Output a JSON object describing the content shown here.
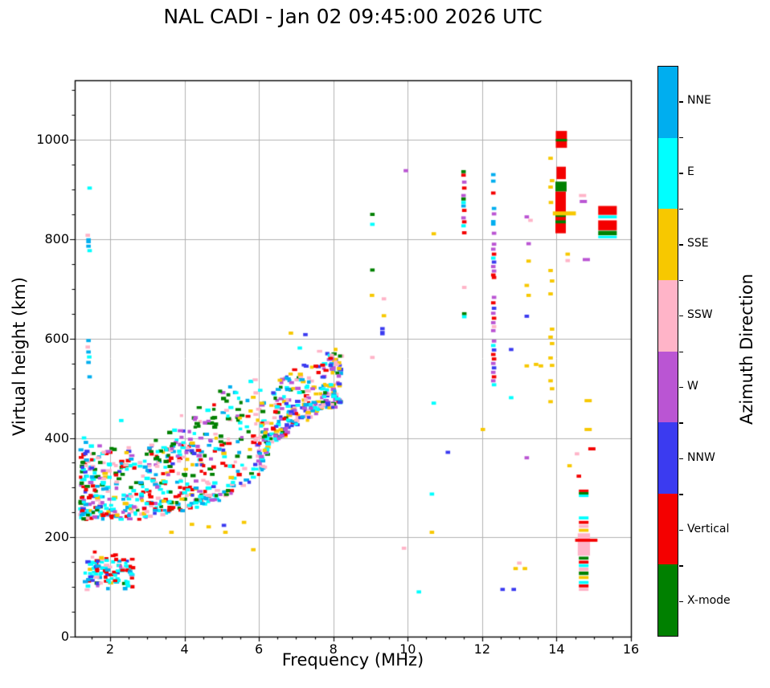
{
  "chart_data": {
    "type": "scatter",
    "title": "NAL CADI - Jan 02 09:45:00 2026 UTC",
    "xlabel": "Frequency (MHz)",
    "ylabel": "Virtual height (km)",
    "legend_title": "Azimuth Direction",
    "xlim": [
      1.05,
      16
    ],
    "ylim": [
      0,
      1120
    ],
    "xticks": [
      2,
      4,
      6,
      8,
      10,
      12,
      14,
      16
    ],
    "yticks": [
      0,
      200,
      400,
      600,
      800,
      1000
    ],
    "x_minor_step": 0.5,
    "y_minor_step": 50,
    "grid": true,
    "grid_color": "#b2b2b2",
    "frame_color": "#000000",
    "directions": [
      {
        "label": "NNE",
        "color": "#00aeef"
      },
      {
        "label": "E",
        "color": "#00ffff"
      },
      {
        "label": "SSE",
        "color": "#f7c800"
      },
      {
        "label": "SSW",
        "color": "#ffb4c8"
      },
      {
        "label": "W",
        "color": "#ba55d3"
      },
      {
        "label": "NNW",
        "color": "#3b3bf0"
      },
      {
        "label": "Vertical",
        "color": "#f40000"
      },
      {
        "label": "X-mode",
        "color": "#008000"
      }
    ],
    "points": [
      [
        1.45,
        903,
        1
      ],
      [
        1.4,
        808,
        3
      ],
      [
        1.42,
        797,
        0,
        1,
        1.6
      ],
      [
        1.42,
        786,
        0
      ],
      [
        1.45,
        777,
        1
      ],
      [
        1.42,
        596,
        0
      ],
      [
        1.4,
        583,
        3
      ],
      [
        1.42,
        573,
        0
      ],
      [
        1.44,
        563,
        1
      ],
      [
        1.42,
        552,
        0
      ],
      [
        1.45,
        523,
        0
      ],
      [
        1.3,
        400,
        1
      ],
      [
        1.35,
        391,
        0
      ],
      [
        2.3,
        435,
        1
      ],
      [
        1.72,
        384,
        4
      ],
      [
        1.83,
        371,
        3
      ],
      [
        3.65,
        210,
        2
      ],
      [
        4.2,
        226,
        2
      ],
      [
        4.65,
        221,
        2
      ],
      [
        5.1,
        210,
        2
      ],
      [
        5.6,
        230,
        2
      ],
      [
        5.85,
        175,
        2
      ],
      [
        5.06,
        224,
        5
      ],
      [
        6.86,
        611,
        2
      ],
      [
        7.1,
        581,
        1
      ],
      [
        7.25,
        608,
        5
      ],
      [
        7.94,
        507,
        1
      ],
      [
        9.05,
        850,
        7
      ],
      [
        9.05,
        830,
        1
      ],
      [
        9.05,
        738,
        7
      ],
      [
        9.04,
        687,
        2
      ],
      [
        9.36,
        680,
        3
      ],
      [
        9.36,
        646,
        2
      ],
      [
        9.32,
        620,
        5
      ],
      [
        9.32,
        611,
        5,
        1,
        1.4
      ],
      [
        9.05,
        562,
        3
      ],
      [
        9.95,
        938,
        4
      ],
      [
        9.9,
        178,
        3
      ],
      [
        10.3,
        90,
        1
      ],
      [
        10.7,
        811,
        2
      ],
      [
        10.7,
        470,
        1
      ],
      [
        10.65,
        287,
        1
      ],
      [
        10.65,
        210,
        2
      ],
      [
        11.08,
        371,
        5
      ],
      [
        11.5,
        936,
        7
      ],
      [
        11.5,
        929,
        6
      ],
      [
        11.52,
        915,
        4
      ],
      [
        11.52,
        903,
        6
      ],
      [
        11.5,
        888,
        4
      ],
      [
        11.5,
        881,
        7
      ],
      [
        11.5,
        874,
        1
      ],
      [
        11.5,
        867,
        0
      ],
      [
        11.52,
        858,
        6
      ],
      [
        11.5,
        843,
        4
      ],
      [
        11.52,
        835,
        6
      ],
      [
        11.5,
        827,
        1
      ],
      [
        11.52,
        813,
        6
      ],
      [
        11.52,
        703,
        3
      ],
      [
        11.52,
        650,
        7
      ],
      [
        11.52,
        644,
        1
      ],
      [
        12.3,
        930,
        0
      ],
      [
        12.3,
        917,
        0
      ],
      [
        12.3,
        893,
        6
      ],
      [
        12.32,
        862,
        0
      ],
      [
        12.32,
        851,
        4
      ],
      [
        12.3,
        833,
        0,
        1,
        1.8
      ],
      [
        12.32,
        812,
        4
      ],
      [
        12.32,
        790,
        4
      ],
      [
        12.3,
        780,
        4
      ],
      [
        12.32,
        770,
        6
      ],
      [
        12.3,
        762,
        1
      ],
      [
        12.32,
        754,
        5
      ],
      [
        12.3,
        745,
        4
      ],
      [
        12.32,
        736,
        4
      ],
      [
        12.3,
        728,
        6
      ],
      [
        12.32,
        723,
        6
      ],
      [
        12.32,
        683,
        4
      ],
      [
        12.3,
        672,
        6
      ],
      [
        12.32,
        661,
        5
      ],
      [
        12.3,
        651,
        4
      ],
      [
        12.32,
        641,
        6
      ],
      [
        12.3,
        632,
        4
      ],
      [
        12.32,
        624,
        3
      ],
      [
        12.3,
        616,
        4
      ],
      [
        12.32,
        595,
        4
      ],
      [
        12.3,
        586,
        1
      ],
      [
        12.32,
        577,
        5
      ],
      [
        12.3,
        568,
        6
      ],
      [
        12.32,
        559,
        6
      ],
      [
        12.3,
        550,
        4
      ],
      [
        12.32,
        541,
        5
      ],
      [
        12.3,
        532,
        4
      ],
      [
        12.32,
        523,
        6
      ],
      [
        12.3,
        515,
        4
      ],
      [
        12.32,
        507,
        1
      ],
      [
        12.02,
        417,
        2
      ],
      [
        12.55,
        95,
        5
      ],
      [
        12.85,
        95,
        5
      ],
      [
        12.9,
        137,
        2
      ],
      [
        13.15,
        137,
        2
      ],
      [
        13.0,
        148,
        3
      ],
      [
        13.2,
        845,
        4
      ],
      [
        13.3,
        838,
        3
      ],
      [
        13.25,
        791,
        4
      ],
      [
        13.25,
        756,
        2
      ],
      [
        13.2,
        707,
        2
      ],
      [
        13.25,
        687,
        2
      ],
      [
        13.2,
        645,
        5
      ],
      [
        12.78,
        578,
        5
      ],
      [
        13.2,
        545,
        2
      ],
      [
        13.45,
        548,
        2
      ],
      [
        13.58,
        545,
        2
      ],
      [
        12.78,
        481,
        1
      ],
      [
        13.2,
        360,
        4
      ],
      [
        13.84,
        963,
        2
      ],
      [
        13.88,
        918,
        2
      ],
      [
        13.84,
        905,
        2
      ],
      [
        13.85,
        874,
        2
      ],
      [
        13.84,
        737,
        2
      ],
      [
        13.88,
        716,
        2
      ],
      [
        13.84,
        690,
        2
      ],
      [
        13.88,
        619,
        2
      ],
      [
        13.84,
        603,
        2
      ],
      [
        13.88,
        590,
        2
      ],
      [
        13.84,
        561,
        2
      ],
      [
        13.88,
        546,
        2
      ],
      [
        13.84,
        515,
        2
      ],
      [
        13.88,
        499,
        2
      ],
      [
        13.84,
        473,
        2
      ],
      [
        14.3,
        770,
        2
      ],
      [
        14.3,
        757,
        3
      ],
      [
        14.8,
        759,
        4,
        1.6,
        1
      ],
      [
        14.7,
        888,
        3,
        1.6,
        1
      ],
      [
        14.72,
        876,
        4,
        1.6,
        1
      ],
      [
        14.85,
        475,
        2,
        1.6,
        1
      ],
      [
        14.85,
        417,
        2,
        1.6,
        1
      ],
      [
        14.95,
        378,
        6,
        1.6,
        1
      ],
      [
        14.55,
        368,
        3
      ],
      [
        14.35,
        344,
        2
      ],
      [
        14.6,
        323,
        6
      ]
    ],
    "blocks": [
      [
        13.98,
        984,
        14.28,
        1018,
        6
      ],
      [
        13.98,
        997,
        14.28,
        1002,
        7
      ],
      [
        14.0,
        921,
        14.25,
        946,
        6
      ],
      [
        13.97,
        896,
        14.27,
        916,
        7
      ],
      [
        13.97,
        812,
        14.25,
        896,
        6
      ],
      [
        13.97,
        845,
        14.25,
        851,
        7
      ],
      [
        13.97,
        832,
        14.25,
        838,
        7
      ],
      [
        13.9,
        848,
        14.52,
        856,
        2
      ],
      [
        15.12,
        849,
        15.62,
        867,
        6
      ],
      [
        15.12,
        842,
        15.62,
        848,
        1
      ],
      [
        15.12,
        818,
        15.62,
        838,
        6
      ],
      [
        15.12,
        808,
        15.62,
        817,
        7
      ],
      [
        15.12,
        802,
        15.62,
        807,
        1
      ],
      [
        14.6,
        291,
        14.86,
        296,
        6
      ],
      [
        14.6,
        286,
        14.86,
        291,
        7
      ],
      [
        14.6,
        281,
        14.86,
        286,
        1
      ],
      [
        14.6,
        236,
        14.86,
        242,
        1
      ],
      [
        14.6,
        227,
        14.86,
        233,
        6
      ],
      [
        14.6,
        219,
        14.86,
        225,
        3
      ],
      [
        14.6,
        211,
        14.86,
        217,
        2
      ],
      [
        14.57,
        163,
        14.9,
        208,
        3
      ],
      [
        14.5,
        191,
        15.1,
        197,
        6
      ],
      [
        14.6,
        155,
        14.86,
        161,
        7
      ],
      [
        14.6,
        147,
        14.86,
        153,
        6
      ],
      [
        14.6,
        140,
        14.86,
        146,
        1
      ],
      [
        14.6,
        132,
        14.86,
        139,
        3
      ],
      [
        14.6,
        124,
        14.86,
        131,
        7
      ],
      [
        14.6,
        116,
        14.86,
        122,
        2
      ],
      [
        14.6,
        106,
        14.86,
        112,
        1
      ],
      [
        14.6,
        99,
        14.86,
        105,
        6
      ],
      [
        14.6,
        92,
        14.86,
        98,
        3
      ]
    ],
    "clusters": [
      {
        "name": "e-region-echoes",
        "seed": 101,
        "count": 110,
        "f": [
          1.3,
          2.65
        ],
        "f_pow": 1.0,
        "base": [
          [
            1.3,
            130
          ],
          [
            2.65,
            130
          ]
        ],
        "spread": 55,
        "mode": "gauss",
        "weights": [
          0.12,
          0.28,
          0.05,
          0.12,
          0.03,
          0.08,
          0.3,
          0.02
        ]
      },
      {
        "name": "f-trace-lower",
        "seed": 202,
        "count": 520,
        "f": [
          1.2,
          6.25
        ],
        "f_pow": 1.35,
        "base": [
          [
            1.2,
            242
          ],
          [
            2.5,
            240
          ],
          [
            3.5,
            250
          ],
          [
            4.5,
            266
          ],
          [
            5.2,
            287
          ],
          [
            5.8,
            316
          ],
          [
            6.25,
            347
          ]
        ],
        "spread": 138,
        "mode": "edge",
        "weights": [
          0.13,
          0.2,
          0.05,
          0.13,
          0.08,
          0.05,
          0.22,
          0.14
        ]
      },
      {
        "name": "f-trace-upper-scatter",
        "seed": 303,
        "count": 85,
        "f": [
          3.1,
          6.05
        ],
        "f_pow": 1.0,
        "base": [
          [
            3.1,
            360
          ],
          [
            4.0,
            402
          ],
          [
            5.0,
            446
          ],
          [
            6.05,
            482
          ]
        ],
        "spread": 62,
        "mode": "gauss",
        "weights": [
          0.14,
          0.21,
          0.02,
          0.08,
          0.16,
          0.06,
          0.01,
          0.32
        ]
      },
      {
        "name": "f2-trace",
        "seed": 404,
        "count": 310,
        "f": [
          5.95,
          8.22
        ],
        "f_pow": 1.0,
        "base": [
          [
            5.95,
            345
          ],
          [
            6.4,
            392
          ],
          [
            7.0,
            426
          ],
          [
            7.6,
            456
          ],
          [
            8.22,
            470
          ]
        ],
        "spread": 112,
        "mode": "edge",
        "weights": [
          0.11,
          0.14,
          0.17,
          0.11,
          0.18,
          0.12,
          0.08,
          0.09
        ]
      }
    ]
  }
}
